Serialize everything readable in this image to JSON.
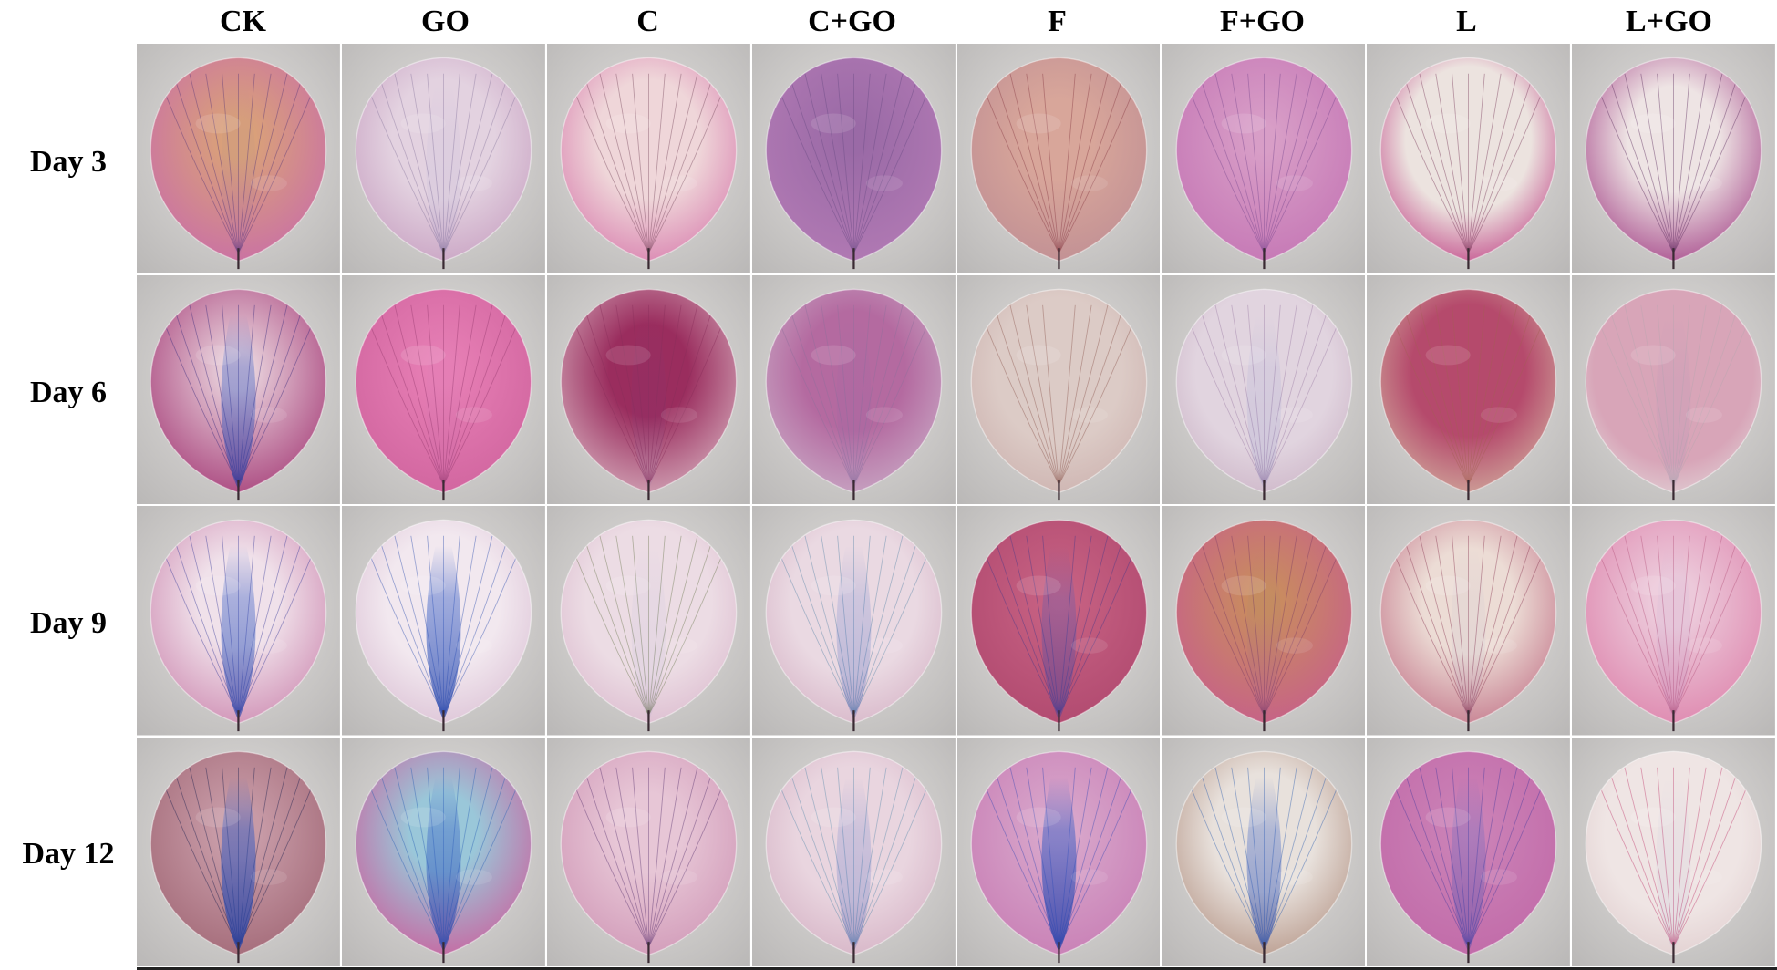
{
  "columns": [
    "CK",
    "GO",
    "C",
    "C+GO",
    "F",
    "F+GO",
    "L",
    "L+GO"
  ],
  "rows": [
    "Day 3",
    "Day 6",
    "Day 9",
    "Day 12"
  ],
  "petals": [
    [
      {
        "base": "#c96fa6",
        "veins": "#5a3a7a",
        "stain": "#d9a07a",
        "blue": 0.05,
        "pale": 0.15
      },
      {
        "base": "#c9a3c3",
        "veins": "#8c7aa0",
        "stain": "#e3d2e0",
        "blue": 0.05,
        "pale": 0.45
      },
      {
        "base": "#d983b0",
        "veins": "#7b4b60",
        "stain": "#efd6d9",
        "blue": 0.0,
        "pale": 0.45
      },
      {
        "base": "#b27ab4",
        "veins": "#6a4b84",
        "stain": "#9a6aa6",
        "blue": 0.0,
        "pale": 0.1
      },
      {
        "base": "#c08f94",
        "veins": "#8a3b45",
        "stain": "#d8a69a",
        "blue": 0.0,
        "pale": 0.3
      },
      {
        "base": "#c577b5",
        "veins": "#7a4a90",
        "stain": "#d89ec7",
        "blue": 0.0,
        "pale": 0.1
      },
      {
        "base": "#c34f8c",
        "veins": "#7a3a5a",
        "stain": "#ece3df",
        "blue": 0.0,
        "pale": 0.55
      },
      {
        "base": "#a84d8d",
        "veins": "#5e2f60",
        "stain": "#eee4e4",
        "blue": 0.0,
        "pale": 0.4
      }
    ],
    [
      {
        "base": "#a8437c",
        "veins": "#3b2c7f",
        "stain": "#e6ccd8",
        "blue": 0.55,
        "pale": 0.15
      },
      {
        "base": "#d0649e",
        "veins": "#9a3b70",
        "stain": "#e77fb5",
        "blue": 0.02,
        "pale": 0.1
      },
      {
        "base": "#d3a7b8",
        "veins": "#8a2e5c",
        "stain": "#9a2d5e",
        "blue": 0.05,
        "pale": 0.35
      },
      {
        "base": "#c8a7c4",
        "veins": "#8e6f9c",
        "stain": "#b46aa0",
        "blue": 0.05,
        "pale": 0.45
      },
      {
        "base": "#cdb3b0",
        "veins": "#8f5a52",
        "stain": "#dccbc6",
        "blue": 0.0,
        "pale": 0.55
      },
      {
        "base": "#cdb6c8",
        "veins": "#9d7ea6",
        "stain": "#e1d4df",
        "blue": 0.1,
        "pale": 0.6
      },
      {
        "base": "#d0a99c",
        "veins": "#a36055",
        "stain": "#b54a6c",
        "blue": 0.0,
        "pale": 0.5
      },
      {
        "base": "#e0cfd4",
        "veins": "#b9a6b0",
        "stain": "#d8a5b8",
        "blue": 0.05,
        "pale": 0.7
      }
    ],
    [
      {
        "base": "#cf8fb4",
        "veins": "#3b3d9c",
        "stain": "#f0e1ea",
        "blue": 0.6,
        "pale": 0.35
      },
      {
        "base": "#dcc3d6",
        "veins": "#2e4fb0",
        "stain": "#f2e8ef",
        "blue": 0.7,
        "pale": 0.5
      },
      {
        "base": "#dcbccf",
        "veins": "#6f7a52",
        "stain": "#ecdce4",
        "blue": 0.05,
        "pale": 0.55
      },
      {
        "base": "#d7b6c8",
        "veins": "#5c87a8",
        "stain": "#ead9e2",
        "blue": 0.25,
        "pale": 0.55
      },
      {
        "base": "#b0496f",
        "veins": "#4a3a8a",
        "stain": "#c86384",
        "blue": 0.35,
        "pale": 0.05
      },
      {
        "base": "#c65f8a",
        "veins": "#7f3f66",
        "stain": "#c98d5e",
        "blue": 0.05,
        "pale": 0.1
      },
      {
        "base": "#c57b8e",
        "veins": "#8c3a55",
        "stain": "#ecdcd5",
        "blue": 0.05,
        "pale": 0.4
      },
      {
        "base": "#de87ae",
        "veins": "#b5577f",
        "stain": "#ecc9da",
        "blue": 0.05,
        "pale": 0.2
      }
    ],
    [
      {
        "base": "#a36a78",
        "veins": "#1e2250",
        "stain": "#c79aa6",
        "blue": 0.75,
        "pale": 0.2
      },
      {
        "base": "#c9649f",
        "veins": "#2d62b5",
        "stain": "#9ac7d9",
        "blue": 0.6,
        "pale": 0.3
      },
      {
        "base": "#d19ab8",
        "veins": "#5a3570",
        "stain": "#e7c6d6",
        "blue": 0.0,
        "pale": 0.3
      },
      {
        "base": "#d6b4c6",
        "veins": "#5a8cae",
        "stain": "#e9d5df",
        "blue": 0.25,
        "pale": 0.5
      },
      {
        "base": "#c87fb5",
        "veins": "#3b4bb5",
        "stain": "#d9a8cc",
        "blue": 0.75,
        "pale": 0.1
      },
      {
        "base": "#b89a8c",
        "veins": "#2f5fb0",
        "stain": "#e8e1dc",
        "blue": 0.5,
        "pale": 0.45
      },
      {
        "base": "#c16aa8",
        "veins": "#4a3ca0",
        "stain": "#cc84b8",
        "blue": 0.3,
        "pale": 0.05
      },
      {
        "base": "#e1cfd0",
        "veins": "#c23b6e",
        "stain": "#efe5e4",
        "blue": 0.05,
        "pale": 0.6
      }
    ]
  ]
}
